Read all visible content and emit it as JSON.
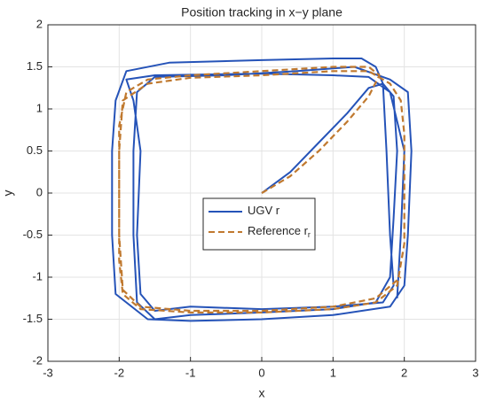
{
  "chart_data": {
    "type": "line",
    "title": "Position tracking in x−y plane",
    "xlabel": "x",
    "ylabel": "y",
    "xlim": [
      -3,
      3
    ],
    "xticks": [
      -3,
      -2,
      -1,
      0,
      1,
      2,
      3
    ],
    "ylim": [
      -2,
      2
    ],
    "yticks": [
      -2,
      -1.5,
      -1,
      -0.5,
      0,
      0.5,
      1,
      1.5,
      2
    ],
    "grid": true,
    "legend": "center",
    "series": [
      {
        "name": "UGV r",
        "color": "#2553b8",
        "dashed": false,
        "x": [
          0,
          0.4,
          0.8,
          1.2,
          1.5,
          1.7,
          1.85,
          1.9,
          1.85,
          1.8,
          1.6,
          1,
          0,
          -1,
          -1.5,
          -1.75,
          -1.8,
          -1.8,
          -1.75,
          -1.5,
          -0.5,
          0.5,
          1.3,
          1.8,
          2.05,
          2.1,
          2.05,
          2,
          1.8,
          1,
          0,
          -1,
          -1.6,
          -2.05,
          -2.1,
          -2.1,
          -2.05,
          -1.9,
          -1.3,
          0,
          1,
          1.4,
          1.6,
          1.7,
          1.75,
          1.8,
          1.85,
          1.7,
          1,
          0,
          -1,
          -1.5,
          -1.7,
          -1.75,
          -1.7,
          -1.8,
          -1.9,
          -1.5,
          0,
          1,
          1.5,
          1.8,
          2,
          1.95,
          1.9
        ],
        "values": [
          0,
          0.25,
          0.6,
          0.95,
          1.25,
          1.3,
          1.15,
          0.5,
          -0.3,
          -1,
          -1.3,
          -1.38,
          -1.42,
          -1.45,
          -1.5,
          -1.3,
          -0.5,
          0.5,
          1.2,
          1.38,
          1.4,
          1.45,
          1.5,
          1.35,
          1.2,
          0.5,
          -0.5,
          -1.1,
          -1.35,
          -1.45,
          -1.5,
          -1.52,
          -1.5,
          -1.2,
          -0.5,
          0.5,
          1.1,
          1.45,
          1.55,
          1.58,
          1.6,
          1.6,
          1.5,
          1.3,
          0.5,
          -0.5,
          -1.1,
          -1.3,
          -1.35,
          -1.38,
          -1.35,
          -1.4,
          -1.2,
          -0.5,
          0.5,
          1.1,
          1.35,
          1.4,
          1.42,
          1.4,
          1.38,
          1.2,
          0.5,
          -0.5,
          -1.25
        ]
      },
      {
        "name": "Reference r",
        "name_subscript": "r",
        "color": "#c0792f",
        "dashed": true,
        "x": [
          0,
          0.4,
          0.8,
          1.2,
          1.5,
          1.65,
          1.5,
          1,
          0,
          -1,
          -1.6,
          -1.9,
          -2,
          -2,
          -2,
          -1.95,
          -1.7,
          -1,
          0,
          1,
          1.6,
          1.9,
          2,
          2,
          2,
          1.95,
          1.8,
          1.5,
          1,
          0,
          -1,
          -1.6,
          -1.95,
          -2,
          -2,
          -1.95,
          -1.7,
          -1,
          0,
          1,
          1.6,
          1.95
        ],
        "values": [
          0,
          0.2,
          0.5,
          0.85,
          1.15,
          1.4,
          1.5,
          1.5,
          1.45,
          1.4,
          1.35,
          1.2,
          0.8,
          0,
          -0.8,
          -1.2,
          -1.38,
          -1.42,
          -1.42,
          -1.38,
          -1.3,
          -1.1,
          -0.6,
          0,
          0.7,
          1.1,
          1.3,
          1.45,
          1.45,
          1.4,
          1.37,
          1.3,
          1.1,
          0.5,
          -0.5,
          -1.15,
          -1.35,
          -1.4,
          -1.4,
          -1.35,
          -1.25,
          -1
        ]
      }
    ]
  }
}
